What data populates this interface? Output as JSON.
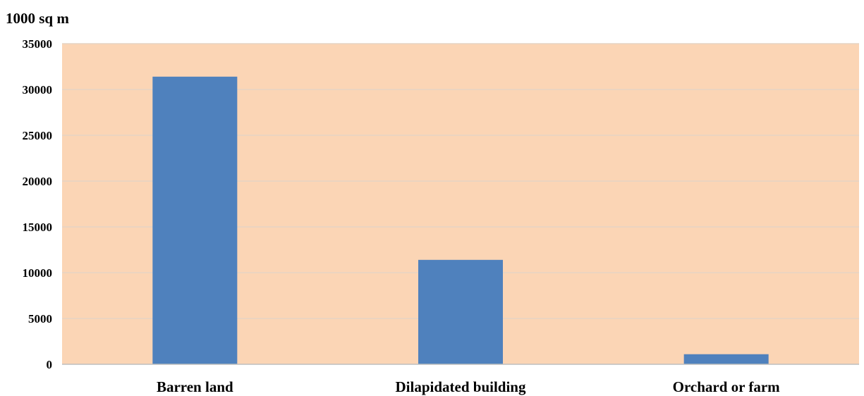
{
  "chart_data": {
    "type": "bar",
    "unit_label": "1000 sq m",
    "title": "",
    "xlabel": "",
    "ylabel": "",
    "categories": [
      "Barren land",
      "Dilapidated building",
      "Orchard or farm"
    ],
    "values": [
      31400,
      11400,
      1100
    ],
    "ylim": [
      0,
      35000
    ],
    "yticks": [
      0,
      5000,
      10000,
      15000,
      20000,
      25000,
      30000,
      35000
    ],
    "grid": true,
    "legend": "none",
    "colors": {
      "plot_background": "#FBD5B5",
      "bar": "#4F81BD",
      "gridline": "#E6D3C3",
      "axis": "#BFBFBF"
    }
  }
}
